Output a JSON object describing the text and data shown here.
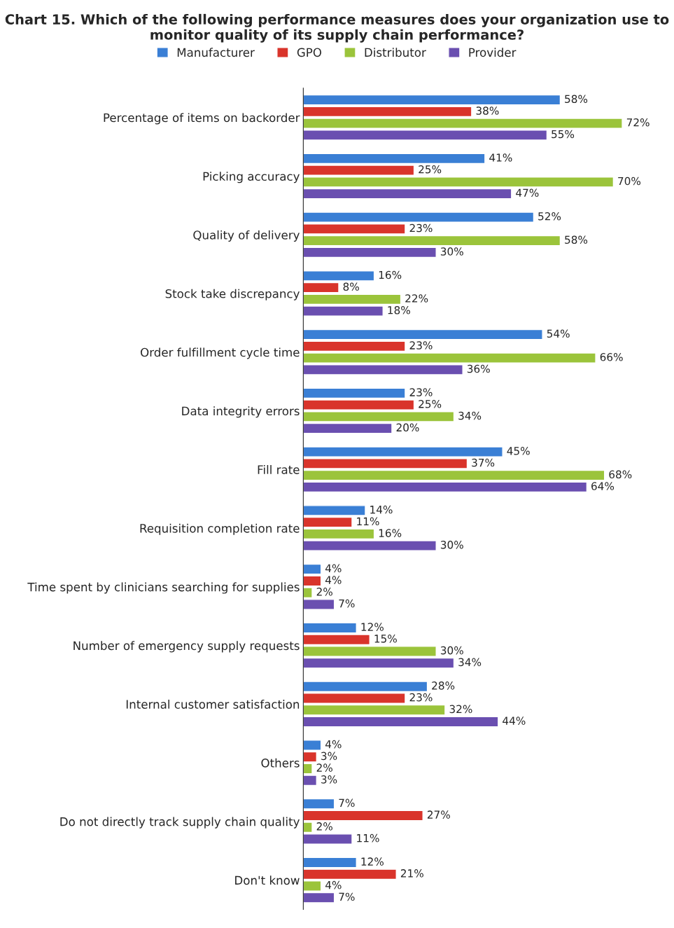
{
  "chart_data": {
    "type": "bar",
    "orientation": "horizontal",
    "title": "Chart 15. Which of the following performance measures does your organization use to monitor quality of its supply chain performance?",
    "categories": [
      "Percentage of items on backorder",
      "Picking accuracy",
      "Quality of delivery",
      "Stock take discrepancy",
      "Order fulfillment cycle time",
      "Data integrity errors",
      "Fill rate",
      "Requisition completion rate",
      "Time spent by clinicians searching for supplies",
      "Number of emergency supply requests",
      "Internal customer satisfaction",
      "Others",
      "Do not directly track supply chain quality",
      "Don't know"
    ],
    "series": [
      {
        "name": "Manufacturer",
        "color": "#3a7fd5",
        "values": [
          58,
          41,
          52,
          16,
          54,
          23,
          45,
          14,
          4,
          12,
          28,
          4,
          7,
          12
        ],
        "value_labels": [
          "58%",
          "41%",
          "52%",
          "16%",
          "54%",
          "23%",
          "45%",
          "14%",
          "4%",
          "12%",
          "28%",
          "4%",
          "7%",
          "12%"
        ]
      },
      {
        "name": "GPO",
        "color": "#d9342b",
        "values": [
          38,
          25,
          23,
          8,
          23,
          25,
          37,
          11,
          4,
          15,
          23,
          3,
          27,
          21
        ],
        "value_labels": [
          "38%",
          "25%",
          "23%",
          "8%",
          "23%",
          "25%",
          "37%",
          "11%",
          "4%",
          "15%",
          "23%",
          "3%",
          "27%",
          "21%"
        ]
      },
      {
        "name": "Distributor",
        "color": "#9bc43b",
        "values": [
          72,
          70,
          58,
          22,
          66,
          34,
          68,
          16,
          2,
          30,
          32,
          2,
          2,
          4
        ],
        "value_labels": [
          "72%",
          "70%",
          "58%",
          "22%",
          "66%",
          "34%",
          "68%",
          "16%",
          "2%",
          "30%",
          "32%",
          "2%",
          "2%",
          "4%"
        ]
      },
      {
        "name": "Provider",
        "color": "#6a4fb0",
        "values": [
          55,
          47,
          30,
          18,
          36,
          20,
          64,
          30,
          7,
          34,
          44,
          3,
          11,
          7
        ],
        "value_labels": [
          "55%",
          "47%",
          "30%",
          "18%",
          "36%",
          "20%",
          "64%",
          "30%",
          "7%",
          "34%",
          "44%",
          "3%",
          "11%",
          "7%"
        ]
      }
    ],
    "legend": "top"
  }
}
